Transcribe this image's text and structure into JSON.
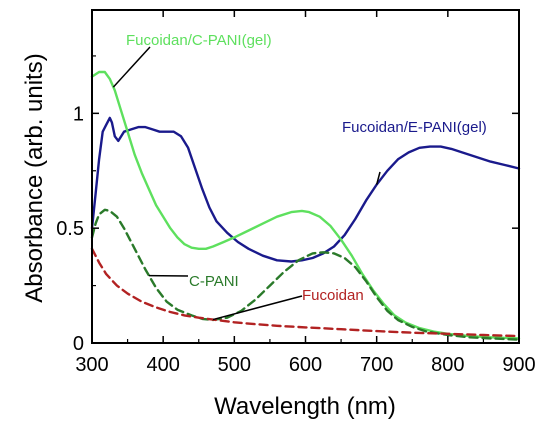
{
  "chart_data": {
    "type": "line",
    "title": "",
    "xlabel": "Wavelength (nm)",
    "ylabel": "Absorbance (arb. units)",
    "xlim": [
      300,
      900
    ],
    "ylim": [
      0,
      1.45
    ],
    "xticks": [
      300,
      400,
      500,
      600,
      700,
      800,
      900
    ],
    "yticks": [
      {
        "value": 0,
        "label": "0"
      },
      {
        "value": 0.5,
        "label": "0.5"
      },
      {
        "value": 1,
        "label": "1"
      }
    ],
    "grid": false,
    "legend": "none",
    "series": [
      {
        "name": "Fucoidan/E-PANI(gel)",
        "color": "#1a1a8c",
        "dash": "solid",
        "points": [
          [
            300,
            0.5
          ],
          [
            305,
            0.65
          ],
          [
            310,
            0.8
          ],
          [
            315,
            0.92
          ],
          [
            320,
            0.95
          ],
          [
            325,
            0.98
          ],
          [
            328,
            0.96
          ],
          [
            332,
            0.9
          ],
          [
            337,
            0.88
          ],
          [
            345,
            0.92
          ],
          [
            355,
            0.93
          ],
          [
            365,
            0.94
          ],
          [
            375,
            0.94
          ],
          [
            385,
            0.93
          ],
          [
            395,
            0.92
          ],
          [
            405,
            0.92
          ],
          [
            415,
            0.92
          ],
          [
            425,
            0.9
          ],
          [
            435,
            0.85
          ],
          [
            445,
            0.76
          ],
          [
            455,
            0.67
          ],
          [
            465,
            0.59
          ],
          [
            475,
            0.53
          ],
          [
            490,
            0.48
          ],
          [
            505,
            0.44
          ],
          [
            520,
            0.41
          ],
          [
            540,
            0.38
          ],
          [
            560,
            0.36
          ],
          [
            580,
            0.355
          ],
          [
            595,
            0.36
          ],
          [
            610,
            0.37
          ],
          [
            625,
            0.39
          ],
          [
            640,
            0.42
          ],
          [
            655,
            0.47
          ],
          [
            670,
            0.54
          ],
          [
            685,
            0.62
          ],
          [
            700,
            0.69
          ],
          [
            715,
            0.75
          ],
          [
            730,
            0.8
          ],
          [
            745,
            0.83
          ],
          [
            760,
            0.85
          ],
          [
            775,
            0.855
          ],
          [
            790,
            0.855
          ],
          [
            805,
            0.845
          ],
          [
            820,
            0.83
          ],
          [
            840,
            0.81
          ],
          [
            860,
            0.79
          ],
          [
            880,
            0.775
          ],
          [
            900,
            0.76
          ]
        ]
      },
      {
        "name": "Fucoidan/C-PANI(gel)",
        "color": "#5ee05e",
        "dash": "solid",
        "points": [
          [
            300,
            1.16
          ],
          [
            310,
            1.18
          ],
          [
            318,
            1.18
          ],
          [
            325,
            1.15
          ],
          [
            332,
            1.1
          ],
          [
            340,
            1.02
          ],
          [
            350,
            0.92
          ],
          [
            360,
            0.82
          ],
          [
            370,
            0.74
          ],
          [
            380,
            0.67
          ],
          [
            390,
            0.6
          ],
          [
            400,
            0.55
          ],
          [
            410,
            0.5
          ],
          [
            420,
            0.46
          ],
          [
            430,
            0.43
          ],
          [
            440,
            0.415
          ],
          [
            450,
            0.41
          ],
          [
            460,
            0.41
          ],
          [
            470,
            0.42
          ],
          [
            485,
            0.44
          ],
          [
            500,
            0.46
          ],
          [
            520,
            0.49
          ],
          [
            540,
            0.52
          ],
          [
            560,
            0.55
          ],
          [
            580,
            0.57
          ],
          [
            595,
            0.575
          ],
          [
            605,
            0.57
          ],
          [
            620,
            0.55
          ],
          [
            635,
            0.51
          ],
          [
            650,
            0.45
          ],
          [
            665,
            0.38
          ],
          [
            680,
            0.3
          ],
          [
            695,
            0.23
          ],
          [
            710,
            0.17
          ],
          [
            725,
            0.12
          ],
          [
            740,
            0.09
          ],
          [
            760,
            0.065
          ],
          [
            780,
            0.05
          ],
          [
            800,
            0.04
          ],
          [
            830,
            0.03
          ],
          [
            860,
            0.025
          ],
          [
            900,
            0.02
          ]
        ]
      },
      {
        "name": "C-PANI",
        "color": "#2a7a2a",
        "dash": "dashed",
        "points": [
          [
            300,
            0.46
          ],
          [
            305,
            0.52
          ],
          [
            310,
            0.56
          ],
          [
            318,
            0.58
          ],
          [
            325,
            0.575
          ],
          [
            335,
            0.55
          ],
          [
            345,
            0.5
          ],
          [
            360,
            0.41
          ],
          [
            375,
            0.32
          ],
          [
            390,
            0.24
          ],
          [
            405,
            0.18
          ],
          [
            420,
            0.145
          ],
          [
            440,
            0.12
          ],
          [
            455,
            0.105
          ],
          [
            470,
            0.1
          ],
          [
            490,
            0.11
          ],
          [
            510,
            0.14
          ],
          [
            530,
            0.19
          ],
          [
            550,
            0.25
          ],
          [
            570,
            0.31
          ],
          [
            590,
            0.36
          ],
          [
            610,
            0.39
          ],
          [
            625,
            0.395
          ],
          [
            640,
            0.39
          ],
          [
            655,
            0.37
          ],
          [
            670,
            0.33
          ],
          [
            685,
            0.27
          ],
          [
            700,
            0.2
          ],
          [
            715,
            0.14
          ],
          [
            730,
            0.1
          ],
          [
            750,
            0.07
          ],
          [
            770,
            0.05
          ],
          [
            800,
            0.035
          ],
          [
            830,
            0.025
          ],
          [
            860,
            0.02
          ],
          [
            900,
            0.015
          ]
        ]
      },
      {
        "name": "Fucoidan",
        "color": "#b22222",
        "dash": "dashed",
        "points": [
          [
            300,
            0.41
          ],
          [
            310,
            0.35
          ],
          [
            320,
            0.3
          ],
          [
            335,
            0.25
          ],
          [
            350,
            0.215
          ],
          [
            370,
            0.18
          ],
          [
            390,
            0.155
          ],
          [
            410,
            0.135
          ],
          [
            430,
            0.12
          ],
          [
            450,
            0.11
          ],
          [
            475,
            0.1
          ],
          [
            500,
            0.09
          ],
          [
            530,
            0.082
          ],
          [
            560,
            0.075
          ],
          [
            600,
            0.068
          ],
          [
            650,
            0.06
          ],
          [
            700,
            0.052
          ],
          [
            750,
            0.045
          ],
          [
            800,
            0.04
          ],
          [
            850,
            0.035
          ],
          [
            900,
            0.03
          ]
        ]
      }
    ],
    "annotations": [
      {
        "text": "Fucoidan/C-PANI(gel)",
        "color": "#5ee05e",
        "series": 1
      },
      {
        "text": "Fucoidan/E-PANI(gel)",
        "color": "#1a1a8c",
        "series": 0
      },
      {
        "text": "C-PANI",
        "color": "#2a7a2a",
        "series": 2
      },
      {
        "text": "Fucoidan",
        "color": "#b22222",
        "series": 3
      }
    ]
  }
}
